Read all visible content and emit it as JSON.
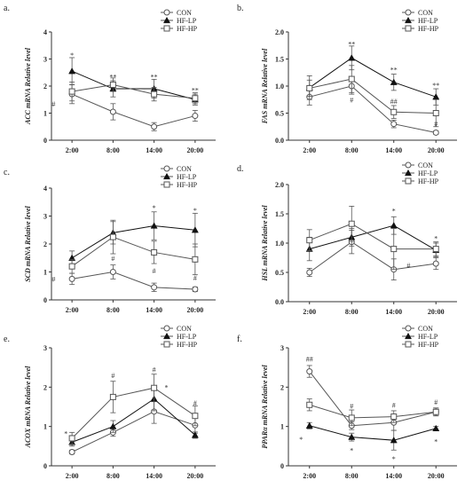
{
  "chart_data": [
    {
      "label": "a.",
      "type": "line",
      "ylabel": "ACC mRNA Relative level",
      "categories": [
        "2:00",
        "8:00",
        "14:00",
        "20:00"
      ],
      "ylim": [
        0,
        4
      ],
      "yticks": [
        0,
        1,
        2,
        3,
        4
      ],
      "legend": "top-right",
      "series": [
        {
          "name": "CON",
          "marker": "circle",
          "values": [
            1.7,
            1.05,
            0.5,
            0.9
          ],
          "errors": [
            0.35,
            0.3,
            0.15,
            0.2
          ]
        },
        {
          "name": "HF-LP",
          "marker": "triangle",
          "values": [
            2.55,
            1.9,
            1.9,
            1.5
          ],
          "errors": [
            0.5,
            0.3,
            0.35,
            0.2
          ]
        },
        {
          "name": "HF-HP",
          "marker": "square",
          "values": [
            1.8,
            2.05,
            1.7,
            1.55
          ],
          "errors": [
            0.35,
            0.25,
            0.25,
            0.2
          ]
        }
      ],
      "annotations": [
        {
          "text": "*",
          "x": 0,
          "y": 3.15
        },
        {
          "text": "#",
          "x": -0.45,
          "y": 1.35
        },
        {
          "text": "**",
          "x": 1,
          "y": 2.35
        },
        {
          "text": "**",
          "x": 2,
          "y": 2.35
        },
        {
          "text": "**",
          "x": 3,
          "y": 1.85
        }
      ]
    },
    {
      "label": "b.",
      "type": "line",
      "ylabel": "FAS mRNA Relative level",
      "categories": [
        "2:00",
        "8:00",
        "14:00",
        "20:00"
      ],
      "ylim": [
        0,
        2
      ],
      "yticks": [
        0.0,
        0.5,
        1.0,
        1.5,
        2.0
      ],
      "legend": "top-right",
      "series": [
        {
          "name": "CON",
          "marker": "circle",
          "values": [
            0.8,
            1.0,
            0.3,
            0.14
          ],
          "errors": [
            0.15,
            0.15,
            0.07,
            0.03
          ]
        },
        {
          "name": "HF-LP",
          "marker": "triangle",
          "values": [
            0.97,
            1.52,
            1.07,
            0.8
          ],
          "errors": [
            0.22,
            0.22,
            0.15,
            0.15
          ]
        },
        {
          "name": "HF-HP",
          "marker": "square",
          "values": [
            0.96,
            1.13,
            0.52,
            0.5
          ],
          "errors": [
            0.15,
            0.25,
            0.12,
            0.25
          ]
        }
      ],
      "annotations": [
        {
          "text": "**",
          "x": 1,
          "y": 1.78
        },
        {
          "text": "#",
          "x": 1,
          "y": 0.75
        },
        {
          "text": "**",
          "x": 2,
          "y": 1.3
        },
        {
          "text": "##",
          "x": 2,
          "y": 0.72
        },
        {
          "text": "**",
          "x": 3,
          "y": 1.02
        },
        {
          "text": "#",
          "x": 3,
          "y": 0.3
        }
      ]
    },
    {
      "label": "c.",
      "type": "line",
      "ylabel": "SCD mRNA Relative level",
      "categories": [
        "2:00",
        "8:00",
        "14:00",
        "20:00"
      ],
      "ylim": [
        0,
        4
      ],
      "yticks": [
        0,
        1,
        2,
        3,
        4
      ],
      "legend": "top-right",
      "series": [
        {
          "name": "CON",
          "marker": "circle",
          "values": [
            0.75,
            1.0,
            0.45,
            0.38
          ],
          "errors": [
            0.2,
            0.25,
            0.15,
            0.08
          ]
        },
        {
          "name": "HF-LP",
          "marker": "triangle",
          "values": [
            1.5,
            2.4,
            2.65,
            2.5
          ],
          "errors": [
            0.25,
            0.4,
            0.5,
            0.6
          ]
        },
        {
          "name": "HF-HP",
          "marker": "square",
          "values": [
            1.2,
            2.25,
            1.7,
            1.45
          ],
          "errors": [
            0.25,
            0.6,
            0.4,
            0.55
          ]
        }
      ],
      "annotations": [
        {
          "text": "#",
          "x": -0.45,
          "y": 0.75
        },
        {
          "text": "#",
          "x": 1,
          "y": 1.5
        },
        {
          "text": "*",
          "x": 2,
          "y": 3.3
        },
        {
          "text": "#",
          "x": 2,
          "y": 1.05
        },
        {
          "text": "*",
          "x": 3,
          "y": 3.2
        },
        {
          "text": "#",
          "x": 3,
          "y": 0.8
        }
      ]
    },
    {
      "label": "d.",
      "type": "line",
      "ylabel": "HSL mRNA Relative level",
      "categories": [
        "2:00",
        "8:00",
        "14:00",
        "20:00"
      ],
      "ylim": [
        0,
        2
      ],
      "yticks": [
        0.0,
        0.5,
        1.0,
        1.5,
        2.0
      ],
      "legend": "top-right",
      "series": [
        {
          "name": "CON",
          "marker": "circle",
          "values": [
            0.5,
            1.02,
            0.55,
            0.65
          ],
          "errors": [
            0.07,
            0.2,
            0.18,
            0.1
          ]
        },
        {
          "name": "HF-LP",
          "marker": "triangle",
          "values": [
            0.9,
            1.1,
            1.3,
            0.88
          ],
          "errors": [
            0.2,
            0.15,
            0.15,
            0.12
          ]
        },
        {
          "name": "HF-HP",
          "marker": "square",
          "values": [
            1.05,
            1.33,
            0.9,
            0.9
          ],
          "errors": [
            0.18,
            0.3,
            0.35,
            0.12
          ]
        }
      ],
      "annotations": [
        {
          "text": "*",
          "x": 2,
          "y": 1.55
        },
        {
          "text": "#",
          "x": 2.35,
          "y": 0.62
        },
        {
          "text": "*",
          "x": 3,
          "y": 1.08
        }
      ]
    },
    {
      "label": "e.",
      "type": "line",
      "ylabel": "ACOX mRNA Relative level",
      "categories": [
        "2:00",
        "8:00",
        "14:00",
        "20:00"
      ],
      "ylim": [
        0,
        3
      ],
      "yticks": [
        0,
        1,
        2,
        3
      ],
      "legend": "top-right",
      "series": [
        {
          "name": "CON",
          "marker": "circle",
          "values": [
            0.35,
            0.85,
            1.38,
            1.03
          ],
          "errors": [
            0.05,
            0.1,
            0.3,
            0.2
          ]
        },
        {
          "name": "HF-LP",
          "marker": "triangle",
          "values": [
            0.6,
            1.0,
            1.7,
            0.78
          ],
          "errors": [
            0.1,
            0.15,
            0.3,
            0.08
          ]
        },
        {
          "name": "HF-HP",
          "marker": "square",
          "values": [
            0.7,
            1.75,
            1.98,
            1.27
          ],
          "errors": [
            0.15,
            0.4,
            0.35,
            0.25
          ]
        }
      ],
      "annotations": [
        {
          "text": "*",
          "x": -0.15,
          "y": 0.82
        },
        {
          "text": "#",
          "x": 1,
          "y": 2.3
        },
        {
          "text": "#",
          "x": 2,
          "y": 2.45
        },
        {
          "text": "*",
          "x": 2.3,
          "y": 2.0
        },
        {
          "text": "#",
          "x": 3,
          "y": 1.6
        }
      ]
    },
    {
      "label": "f.",
      "type": "line",
      "ylabel": "PPARα mRNA Relative level",
      "categories": [
        "2:00",
        "8:00",
        "14:00",
        "20:00"
      ],
      "ylim": [
        0,
        3
      ],
      "yticks": [
        0,
        1,
        2,
        3
      ],
      "legend": "top-right",
      "series": [
        {
          "name": "CON",
          "marker": "circle",
          "values": [
            2.4,
            1.02,
            1.1,
            1.37
          ],
          "errors": [
            0.15,
            0.1,
            0.2,
            0.1
          ]
        },
        {
          "name": "HF-LP",
          "marker": "triangle",
          "values": [
            1.02,
            0.73,
            0.65,
            0.95
          ],
          "errors": [
            0.08,
            0.1,
            0.25,
            0.05
          ]
        },
        {
          "name": "HF-HP",
          "marker": "square",
          "values": [
            1.55,
            1.22,
            1.25,
            1.37
          ],
          "errors": [
            0.15,
            0.2,
            0.15,
            0.1
          ]
        }
      ],
      "annotations": [
        {
          "text": "##",
          "x": 0,
          "y": 2.72
        },
        {
          "text": "*",
          "x": -0.2,
          "y": 0.68
        },
        {
          "text": "#",
          "x": 1,
          "y": 1.52
        },
        {
          "text": "*",
          "x": 1,
          "y": 0.4
        },
        {
          "text": "#",
          "x": 2,
          "y": 1.55
        },
        {
          "text": "*",
          "x": 2,
          "y": 0.18
        },
        {
          "text": "#",
          "x": 3,
          "y": 1.62
        },
        {
          "text": "*",
          "x": 3,
          "y": 0.62
        }
      ]
    }
  ]
}
